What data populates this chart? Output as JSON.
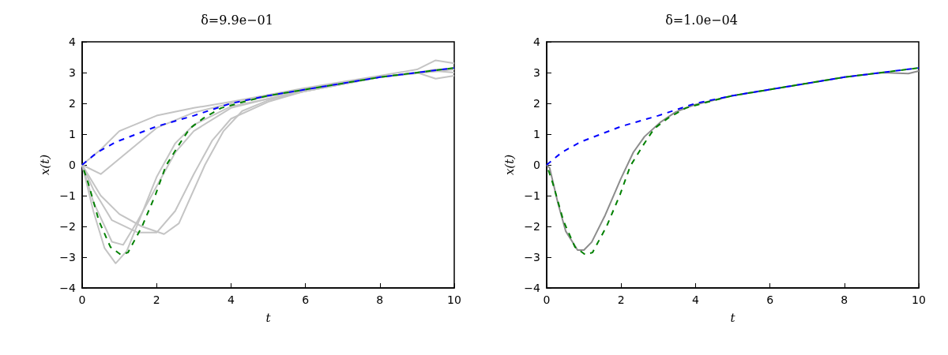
{
  "chart_data": [
    {
      "type": "line",
      "title": "δ=9.9e−01",
      "xlabel": "t",
      "ylabel": "x(t)",
      "xlim": [
        0,
        10
      ],
      "xticks": [
        0,
        2,
        4,
        6,
        8,
        10
      ],
      "ylim": [
        -4,
        4
      ],
      "yticks": [
        {
          "value": -4,
          "label": "−4"
        },
        {
          "value": -3,
          "label": "−3"
        },
        {
          "value": -2,
          "label": "−2"
        },
        {
          "value": -1,
          "label": "−1"
        },
        0,
        1,
        2,
        3,
        4
      ],
      "grid": false,
      "marker": "none",
      "series": [
        {
          "color": "#c4c4c4",
          "line_style": "solid",
          "x": [
            0,
            0.5,
            1,
            2,
            3,
            4,
            6,
            8,
            9,
            9.5,
            10
          ],
          "values": [
            0,
            0.5,
            1.1,
            1.6,
            1.85,
            2.05,
            2.5,
            2.9,
            3.1,
            3.4,
            3.3
          ]
        },
        {
          "color": "#c4c4c4",
          "line_style": "solid",
          "x": [
            0,
            0.5,
            1,
            2,
            3,
            4,
            6,
            8,
            9,
            9.5,
            10
          ],
          "values": [
            0,
            -0.3,
            0.2,
            1.2,
            1.7,
            2.0,
            2.45,
            2.85,
            3.0,
            3.1,
            3.1
          ]
        },
        {
          "color": "#c4c4c4",
          "line_style": "solid",
          "x": [
            0,
            0.3,
            0.6,
            0.9,
            1.2,
            1.6,
            2,
            2.5,
            3,
            4,
            6,
            8,
            9,
            9.5,
            10
          ],
          "values": [
            0,
            -1.5,
            -2.7,
            -3.2,
            -2.8,
            -1.6,
            -0.4,
            0.7,
            1.3,
            1.9,
            2.4,
            2.85,
            3.0,
            2.8,
            2.9
          ]
        },
        {
          "color": "#c4c4c4",
          "line_style": "solid",
          "x": [
            0,
            0.3,
            0.8,
            1.5,
            2,
            2.5,
            3,
            3.5,
            4,
            5,
            6,
            8,
            10
          ],
          "values": [
            0,
            -0.8,
            -1.8,
            -2.2,
            -2.2,
            -1.5,
            -0.3,
            0.8,
            1.5,
            2.05,
            2.4,
            2.85,
            3.1
          ]
        },
        {
          "color": "#c4c4c4",
          "line_style": "solid",
          "x": [
            0,
            0.3,
            0.8,
            1.1,
            1.5,
            2,
            2.5,
            3,
            4,
            6,
            8,
            9.5,
            10
          ],
          "values": [
            0,
            -1.2,
            -2.5,
            -2.6,
            -1.8,
            -0.7,
            0.4,
            1.1,
            1.85,
            2.45,
            2.85,
            3.05,
            3.0
          ]
        },
        {
          "color": "#c4c4c4",
          "line_style": "solid",
          "x": [
            0,
            0.5,
            1,
            1.6,
            2.2,
            2.6,
            3.3,
            3.8,
            4.3,
            5,
            6,
            8,
            10
          ],
          "values": [
            0,
            -1.0,
            -1.6,
            -2.0,
            -2.25,
            -1.9,
            0,
            1.1,
            1.75,
            2.1,
            2.4,
            2.85,
            3.15
          ]
        },
        {
          "color": "#0000ff",
          "line_style": "dashed",
          "x": [
            0,
            0.4,
            0.9,
            2,
            3,
            4,
            5,
            6,
            7,
            8,
            9,
            10
          ],
          "values": [
            0,
            0.4,
            0.74,
            1.25,
            1.6,
            2.0,
            2.25,
            2.45,
            2.65,
            2.85,
            3.0,
            3.15
          ]
        },
        {
          "color": "#008000",
          "line_style": "dashed",
          "x": [
            0,
            0.17,
            0.45,
            0.76,
            1.04,
            1.23,
            1.61,
            1.97,
            2.25,
            2.61,
            2.89,
            3.25,
            3.74,
            4.5,
            5,
            6,
            7,
            8,
            9,
            10
          ],
          "values": [
            0,
            -0.62,
            -1.82,
            -2.67,
            -2.92,
            -2.85,
            -2.0,
            -0.97,
            -0.03,
            0.67,
            1.18,
            1.51,
            1.85,
            2.1,
            2.25,
            2.45,
            2.65,
            2.85,
            3.0,
            3.15
          ]
        }
      ]
    },
    {
      "type": "line",
      "title": "δ=1.0e−04",
      "xlabel": "t",
      "ylabel": "x(t)",
      "xlim": [
        0,
        10
      ],
      "xticks": [
        0,
        2,
        4,
        6,
        8,
        10
      ],
      "ylim": [
        -4,
        4
      ],
      "yticks": [
        {
          "value": -4,
          "label": "−4"
        },
        {
          "value": -3,
          "label": "−3"
        },
        {
          "value": -2,
          "label": "−2"
        },
        {
          "value": -1,
          "label": "−1"
        },
        0,
        1,
        2,
        3,
        4
      ],
      "grid": false,
      "marker": "none",
      "series": [
        {
          "color": "#0000ff",
          "line_style": "dashed",
          "x": [
            0,
            0.4,
            0.9,
            2,
            3,
            4,
            5,
            6,
            7,
            8,
            9,
            10
          ],
          "values": [
            0,
            0.4,
            0.74,
            1.25,
            1.6,
            2.0,
            2.25,
            2.45,
            2.65,
            2.85,
            3.0,
            3.15
          ]
        },
        {
          "color": "#008000",
          "line_style": "dashed",
          "x": [
            0,
            0.17,
            0.45,
            0.76,
            1.04,
            1.23,
            1.61,
            1.97,
            2.25,
            2.61,
            2.89,
            3.25,
            3.74,
            4.5,
            5,
            6,
            7,
            8,
            9,
            10
          ],
          "values": [
            0,
            -0.62,
            -1.82,
            -2.67,
            -2.92,
            -2.85,
            -2.0,
            -0.97,
            -0.03,
            0.67,
            1.18,
            1.51,
            1.85,
            2.1,
            2.25,
            2.45,
            2.65,
            2.85,
            3.0,
            3.15
          ]
        },
        {
          "color": "#8c8c8c",
          "line_style": "solid",
          "x": [
            0,
            0.08,
            0.3,
            0.51,
            0.83,
            1.0,
            1.21,
            1.57,
            1.99,
            2.33,
            2.63,
            3.05,
            3.47,
            3.96,
            5,
            6,
            7,
            8,
            9,
            9.72,
            10
          ],
          "values": [
            0,
            -0.1,
            -1.23,
            -2.15,
            -2.77,
            -2.77,
            -2.51,
            -1.64,
            -0.46,
            0.41,
            0.92,
            1.38,
            1.72,
            1.95,
            2.25,
            2.45,
            2.65,
            2.85,
            3.0,
            2.97,
            3.05
          ]
        }
      ]
    }
  ]
}
